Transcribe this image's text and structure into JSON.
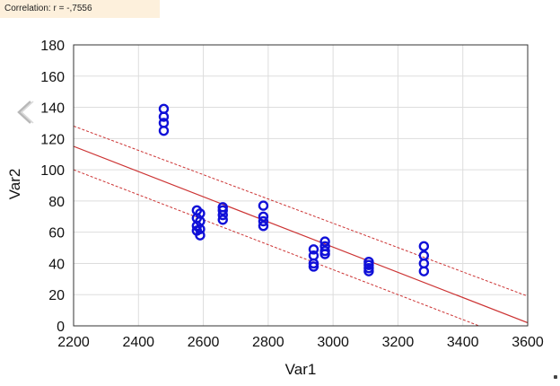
{
  "banner": {
    "correlation_text": "Correlation: r = -,7556"
  },
  "chart_data": {
    "type": "scatter",
    "title": "",
    "xlabel": "Var1",
    "ylabel": "Var2",
    "xlim": [
      2200,
      3600
    ],
    "ylim": [
      0,
      180
    ],
    "x_ticks": [
      2200,
      2400,
      2600,
      2800,
      3000,
      3200,
      3400,
      3600
    ],
    "y_ticks": [
      0,
      20,
      40,
      60,
      80,
      100,
      120,
      140,
      160,
      180
    ],
    "grid": true,
    "correlation_r": -0.7556,
    "series": [
      {
        "marker": "circle-open",
        "color": "#1010d8",
        "points": [
          [
            2478,
            139
          ],
          [
            2478,
            134
          ],
          [
            2478,
            130
          ],
          [
            2478,
            125
          ],
          [
            2580,
            74
          ],
          [
            2590,
            72
          ],
          [
            2580,
            69
          ],
          [
            2590,
            67
          ],
          [
            2580,
            64
          ],
          [
            2590,
            62
          ],
          [
            2580,
            61
          ],
          [
            2590,
            58
          ],
          [
            2660,
            76
          ],
          [
            2660,
            74
          ],
          [
            2660,
            71
          ],
          [
            2660,
            68
          ],
          [
            2785,
            77
          ],
          [
            2785,
            70
          ],
          [
            2785,
            67
          ],
          [
            2785,
            64
          ],
          [
            2940,
            49
          ],
          [
            2940,
            45
          ],
          [
            2940,
            40
          ],
          [
            2940,
            38
          ],
          [
            2975,
            54
          ],
          [
            2975,
            51
          ],
          [
            2975,
            48
          ],
          [
            2975,
            46
          ],
          [
            3110,
            41
          ],
          [
            3110,
            39
          ],
          [
            3110,
            37
          ],
          [
            3110,
            35
          ],
          [
            3280,
            51
          ],
          [
            3280,
            45
          ],
          [
            3280,
            40
          ],
          [
            3280,
            35
          ]
        ]
      }
    ],
    "regression": {
      "color": "#cc3333",
      "line": [
        [
          2200,
          115
        ],
        [
          3600,
          2
        ]
      ],
      "ci_upper": [
        [
          2200,
          128
        ],
        [
          3600,
          19
        ]
      ],
      "ci_lower": [
        [
          2200,
          100
        ],
        [
          3450,
          0
        ]
      ]
    }
  },
  "icons": {
    "back": "chevron-left-icon"
  },
  "colors": {
    "points": "#1010d8",
    "fit_line": "#cc3333",
    "grid": "#dddddd",
    "banner_bg": "#fdf0dc"
  }
}
